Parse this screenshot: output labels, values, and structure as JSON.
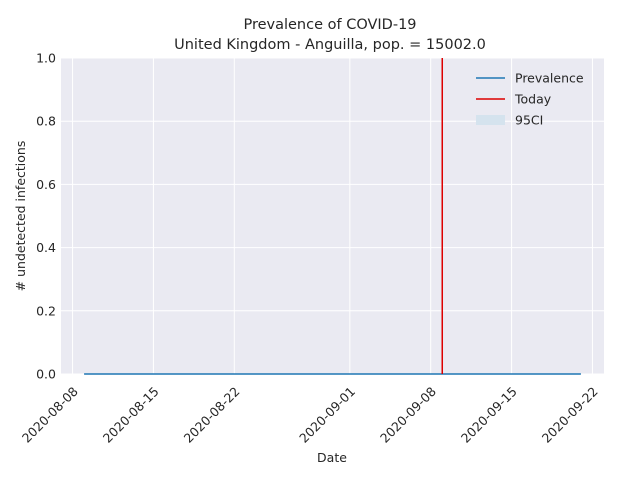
{
  "chart_data": {
    "type": "line",
    "title": "Prevalence of COVID-19",
    "subtitle": "United Kingdom - Anguilla, pop. = 15002.0",
    "xlabel": "Date",
    "ylabel": "# undetected infections",
    "x_range": [
      "2020-08-07",
      "2020-09-23"
    ],
    "ylim": [
      0,
      1
    ],
    "x_ticks": [
      "2020-08-08",
      "2020-08-15",
      "2020-08-22",
      "2020-09-01",
      "2020-09-08",
      "2020-09-15",
      "2020-09-22"
    ],
    "y_ticks": [
      "0.0",
      "0.2",
      "0.4",
      "0.6",
      "0.8",
      "1.0"
    ],
    "grid": true,
    "legend_position": "top-right",
    "series": [
      {
        "name": "Prevalence",
        "color": "#1f77b4",
        "x": [
          "2020-08-09",
          "2020-09-21"
        ],
        "y": [
          0,
          0
        ]
      }
    ],
    "band": {
      "name": "95CI",
      "color": "#d5e3ee",
      "x": [
        "2020-08-09",
        "2020-09-21"
      ],
      "lower": [
        0,
        0
      ],
      "upper": [
        0,
        0
      ]
    },
    "today": {
      "name": "Today",
      "color": "#dd0000",
      "x": "2020-09-09"
    },
    "legend": [
      "Prevalence",
      "Today",
      "95CI"
    ]
  }
}
